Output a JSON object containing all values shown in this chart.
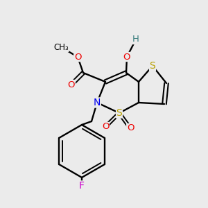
{
  "bg_color": "#ebebeb",
  "atom_colors": {
    "S": "#b8a000",
    "N": "#0000ee",
    "O": "#ee0000",
    "F": "#cc00cc",
    "C": "#000000",
    "H": "#3d8080"
  },
  "bond_color": "#000000",
  "figsize": [
    3.0,
    3.0
  ],
  "dpi": 100
}
